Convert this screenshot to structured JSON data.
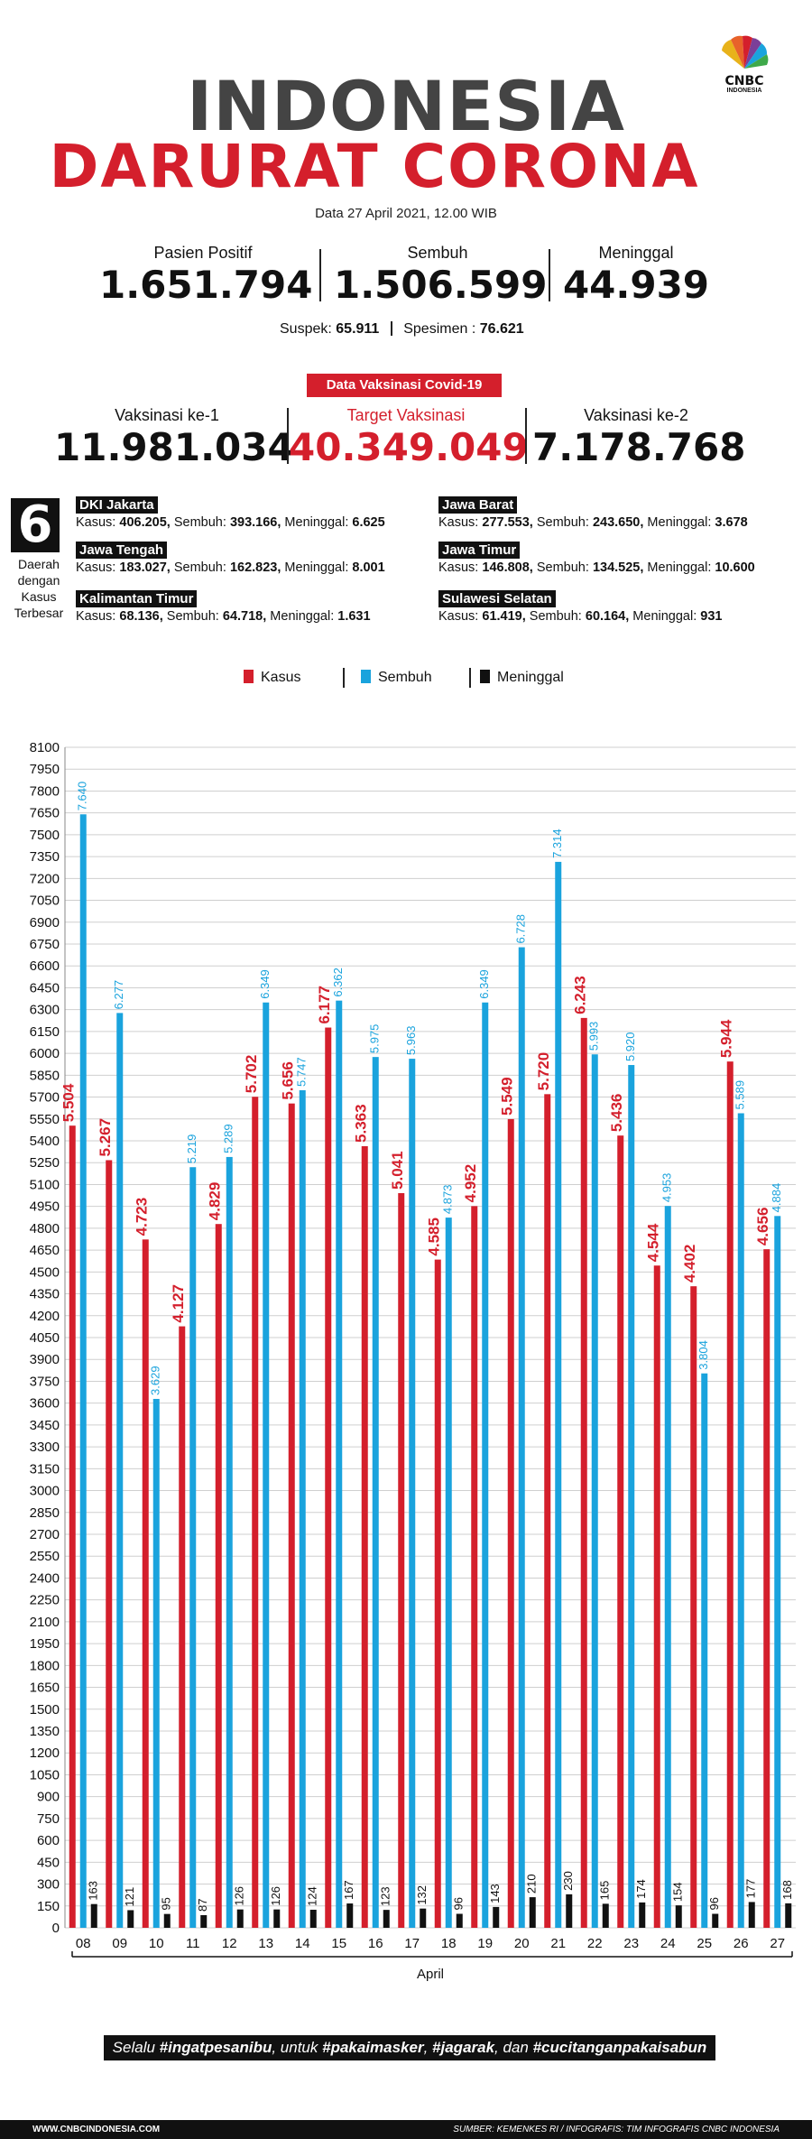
{
  "header": {
    "logo_text_1": "CNBC",
    "logo_text_2": "INDONESIA",
    "title_line1": "INDONESIA",
    "title_line2": "DARURAT CORONA",
    "date": "Data 27 April 2021, 12.00 WIB"
  },
  "stats": [
    {
      "label": "Pasien Positif",
      "value": "1.651.794"
    },
    {
      "label": "Sembuh",
      "value": "1.506.599"
    },
    {
      "label": "Meninggal",
      "value": "44.939"
    }
  ],
  "suspek": {
    "label": "Suspek:",
    "value": "65.911",
    "specimen_label": "Spesimen :",
    "specimen_value": "76.621"
  },
  "vaccination": {
    "badge": "Data Vaksinasi Covid-19",
    "items": [
      {
        "label": "Vaksinasi ke-1",
        "value": "11.981.034"
      },
      {
        "label": "Target Vaksinasi",
        "value": "40.349.049"
      },
      {
        "label": "Vaksinasi ke-2",
        "value": "7.178.768"
      }
    ]
  },
  "regions": {
    "count": "6",
    "caption": [
      "Daerah",
      "dengan",
      "Kasus",
      "Terbesar"
    ],
    "list": [
      {
        "name": "DKI Jakarta",
        "kasus": "406.205,",
        "sembuh": "393.166,",
        "meninggal": "6.625"
      },
      {
        "name": "Jawa Barat",
        "kasus": "277.553,",
        "sembuh": "243.650,",
        "meninggal": "3.678"
      },
      {
        "name": "Jawa Tengah",
        "kasus": "183.027,",
        "sembuh": "162.823,",
        "meninggal": "8.001"
      },
      {
        "name": "Jawa Timur",
        "kasus": "146.808,",
        "sembuh": "134.525,",
        "meninggal": "10.600"
      },
      {
        "name": "Kalimantan Timur",
        "kasus": "68.136,",
        "sembuh": "64.718,",
        "meninggal": "1.631"
      },
      {
        "name": "Sulawesi Selatan",
        "kasus": "61.419,",
        "sembuh": "60.164,",
        "meninggal": "931"
      }
    ],
    "kasus_label": "Kasus:",
    "sembuh_label": "Sembuh:",
    "meninggal_label": "Meninggal:"
  },
  "chart_data": {
    "type": "bar",
    "categories": [
      "08",
      "09",
      "10",
      "11",
      "12",
      "13",
      "14",
      "15",
      "16",
      "17",
      "18",
      "19",
      "20",
      "21",
      "22",
      "23",
      "24",
      "25",
      "26",
      "27"
    ],
    "series": [
      {
        "name": "Kasus",
        "color": "#d41f2c",
        "values": [
          5504,
          5267,
          4723,
          4127,
          4829,
          5702,
          5656,
          6177,
          5363,
          5041,
          4585,
          4952,
          5549,
          5720,
          6243,
          5436,
          4544,
          4402,
          5944,
          4656
        ],
        "labels": [
          "5.504",
          "5.267",
          "4.723",
          "4.127",
          "4.829",
          "5.702",
          "5.656",
          "6.177",
          "5.363",
          "5.041",
          "4.585",
          "4.952",
          "5.549",
          "5.720",
          "6.243",
          "5.436",
          "4.544",
          "4.402",
          "5.944",
          "4.656"
        ]
      },
      {
        "name": "Sembuh",
        "color": "#1aa3dd",
        "values": [
          7640,
          6277,
          3629,
          5219,
          5289,
          6349,
          5747,
          6362,
          5975,
          5963,
          4873,
          6349,
          6728,
          7314,
          5993,
          5920,
          4953,
          3804,
          5589,
          4884
        ],
        "labels": [
          "7.640",
          "6.277",
          "3.629",
          "5.219",
          "5.289",
          "6.349",
          "5.747",
          "6.362",
          "5.975",
          "5.963",
          "4.873",
          "6.349",
          "6.728",
          "7.314",
          "5.993",
          "5.920",
          "4.953",
          "3.804",
          "5.589",
          "4.884"
        ]
      },
      {
        "name": "Meninggal",
        "color": "#111111",
        "values": [
          163,
          121,
          95,
          87,
          126,
          126,
          124,
          167,
          123,
          132,
          96,
          143,
          210,
          230,
          165,
          174,
          154,
          96,
          177,
          168
        ],
        "labels": [
          "163",
          "121",
          "95",
          "87",
          "126",
          "126",
          "124",
          "167",
          "123",
          "132",
          "96",
          "143",
          "210",
          "230",
          "165",
          "174",
          "154",
          "96",
          "177",
          "168"
        ]
      }
    ],
    "ylim": [
      0,
      8100
    ],
    "yticks": [
      0,
      150,
      300,
      450,
      600,
      750,
      900,
      1050,
      1200,
      1350,
      1500,
      1650,
      1800,
      1950,
      2100,
      2250,
      2400,
      2550,
      2700,
      2850,
      3000,
      3150,
      3300,
      3450,
      3600,
      3750,
      3900,
      4050,
      4200,
      4350,
      4500,
      4650,
      4800,
      4950,
      5100,
      5250,
      5400,
      5550,
      5700,
      5850,
      6000,
      6150,
      6300,
      6450,
      6600,
      6750,
      6900,
      7050,
      7200,
      7350,
      7500,
      7650,
      7800,
      7950,
      8100
    ],
    "xlabel": "April",
    "ylabel": "",
    "grid": true,
    "legend": "top-center"
  },
  "footer": {
    "slogan_prefix": "Selalu ",
    "slogan_1": "#ingatpesanibu",
    "slogan_mid1": ", untuk ",
    "slogan_2": "#pakaimasker",
    "slogan_sep": ", ",
    "slogan_3": "#jagarak",
    "slogan_mid2": ", dan ",
    "slogan_4": "#cucitanganpakaisabun",
    "site": "WWW.CNBCINDONESIA.COM",
    "source": "SUMBER: KEMENKES RI / INFOGRAFIS: TIM INFOGRAFIS CNBC INDONESIA"
  }
}
